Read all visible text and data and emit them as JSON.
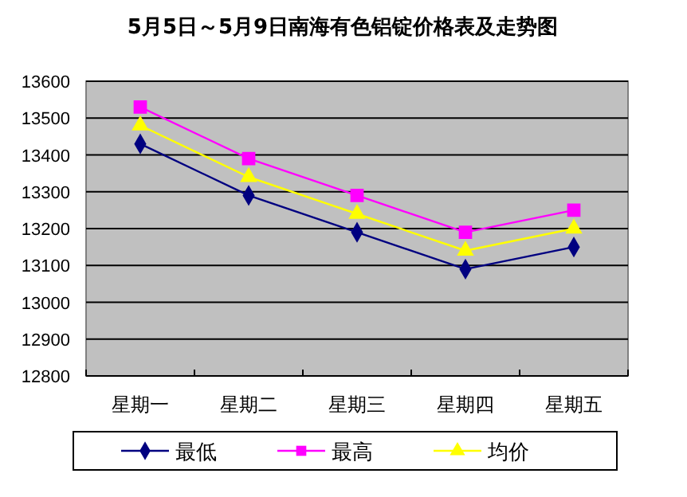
{
  "chart_data": {
    "type": "line",
    "title": "5月5日～5月9日南海有色铝锭价格表及走势图",
    "categories": [
      "星期一",
      "星期二",
      "星期三",
      "星期四",
      "星期五"
    ],
    "series": [
      {
        "name": "最低",
        "color": "#000080",
        "marker": "diamond",
        "values": [
          13430,
          13290,
          13190,
          13090,
          13150
        ]
      },
      {
        "name": "最高",
        "color": "#ff00ff",
        "marker": "square",
        "values": [
          13530,
          13390,
          13290,
          13190,
          13250
        ]
      },
      {
        "name": "均价",
        "color": "#ffff00",
        "marker": "triangle",
        "values": [
          13480,
          13340,
          13240,
          13140,
          13200
        ]
      }
    ],
    "ylim": [
      12800,
      13600
    ],
    "yticks": [
      12800,
      12900,
      13000,
      13100,
      13200,
      13300,
      13400,
      13500,
      13600
    ],
    "grid": "y",
    "legend": "bottom"
  }
}
